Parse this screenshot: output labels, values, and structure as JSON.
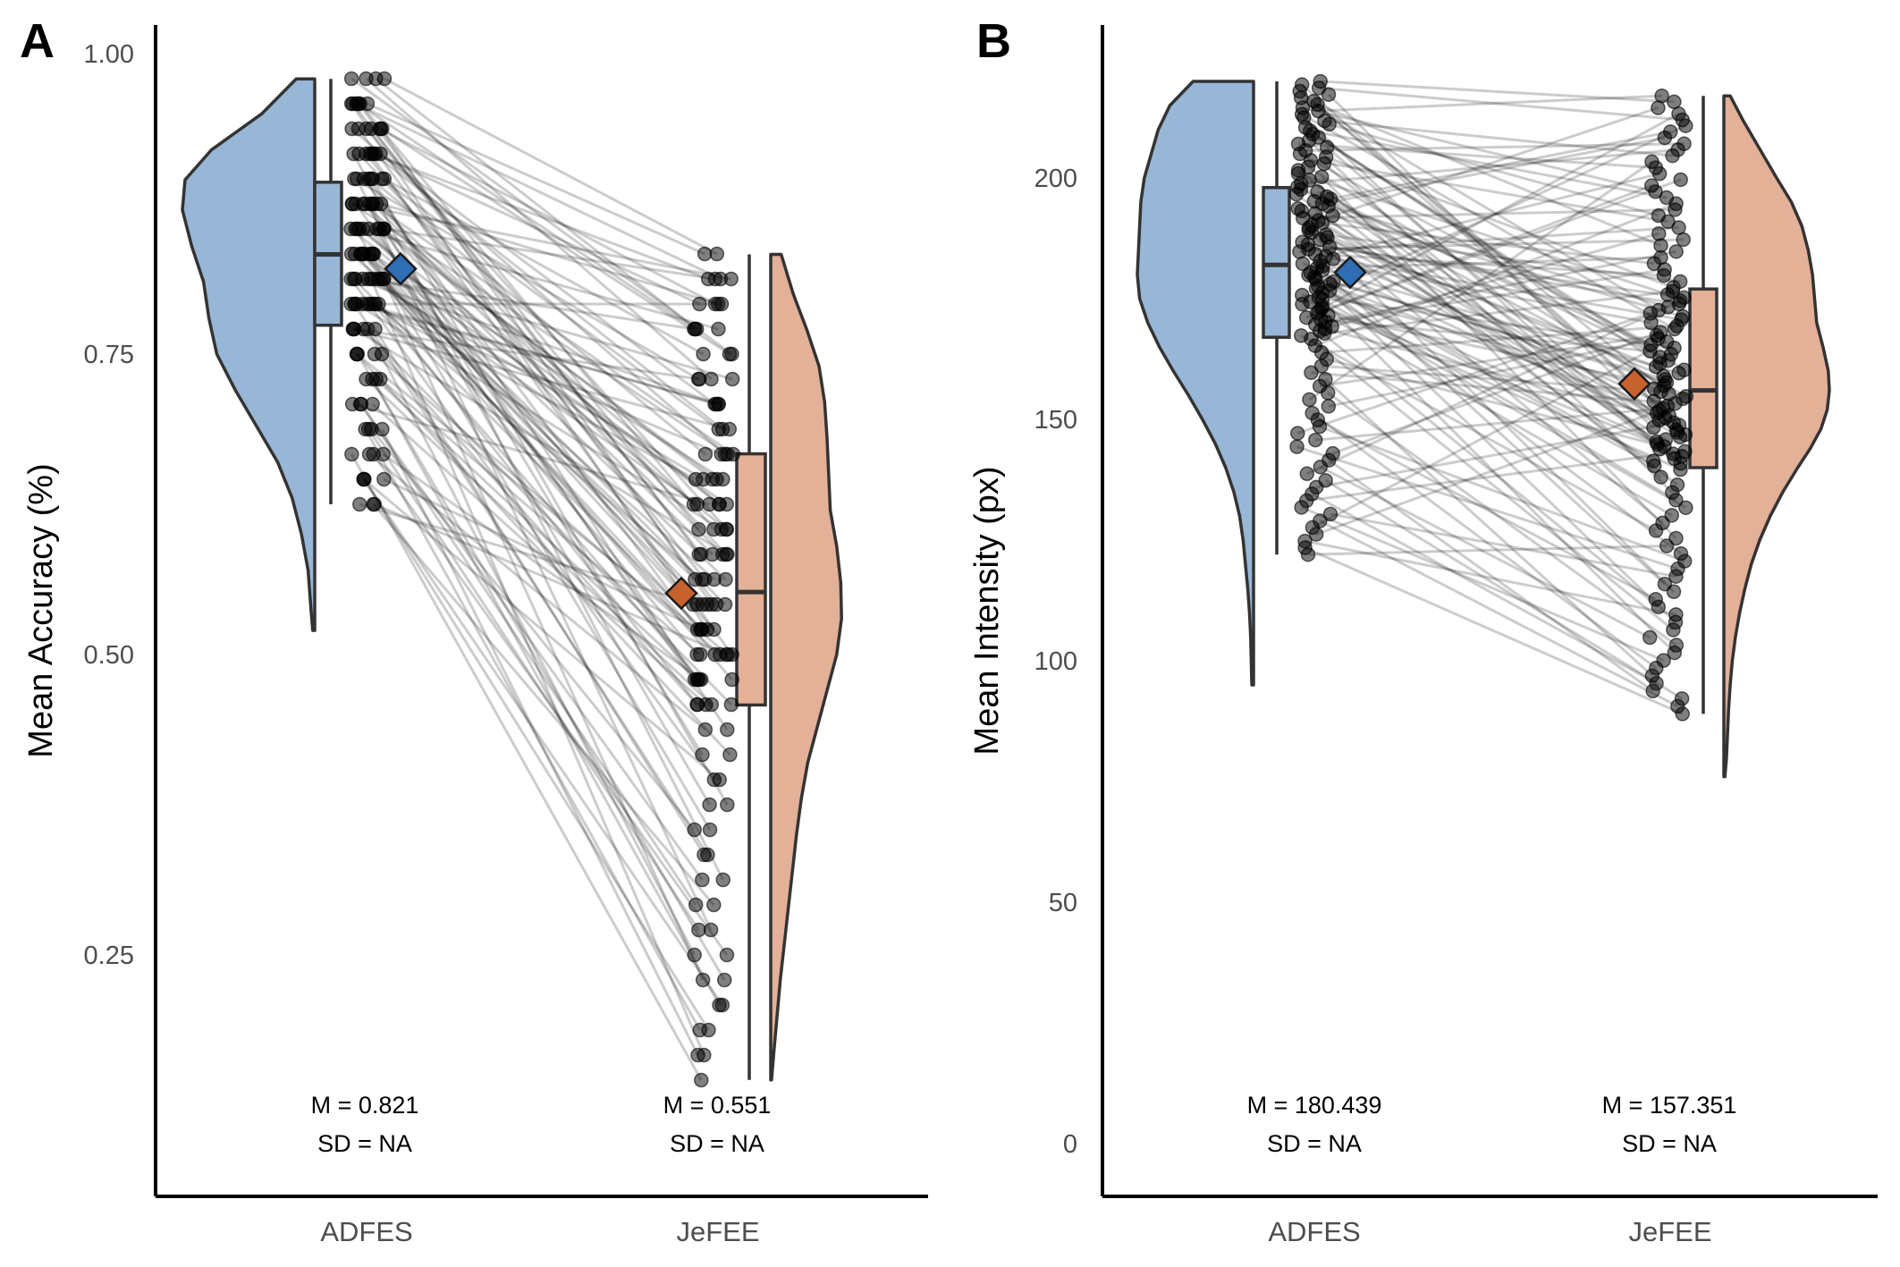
{
  "colors": {
    "group1_fill": "#98b6d6",
    "group2_fill": "#e3b098",
    "group1_mean": "#2f6db5",
    "group2_mean": "#c7622e",
    "outline": "#333333",
    "point": "#000000",
    "line": "#000000"
  },
  "chart_data": [
    {
      "panel": "A",
      "type": "raincloud",
      "ylabel": "Mean Accuracy (%)",
      "xlabel": "",
      "categories": [
        "ADFES",
        "JeFEE"
      ],
      "yticks": [
        0.25,
        0.5,
        0.75,
        1.0
      ],
      "ytick_labels": [
        "0.25",
        "0.50",
        "0.75",
        "1.00"
      ],
      "ylim": [
        0.075,
        1.02
      ],
      "grid": false,
      "groups": [
        {
          "name": "ADFES",
          "mean": 0.821,
          "box": {
            "q1": 0.774,
            "median": 0.833,
            "q3": 0.893,
            "whisker_low": 0.625,
            "whisker_high": 0.979
          },
          "annotation": [
            "M = 0.821",
            "SD = NA"
          ]
        },
        {
          "name": "JeFEE",
          "mean": 0.551,
          "box": {
            "q1": 0.458,
            "median": 0.552,
            "q3": 0.667,
            "whisker_low": 0.146,
            "whisker_high": 0.833
          },
          "annotation": [
            "M = 0.551",
            "SD = NA"
          ]
        }
      ],
      "density": {
        "ADFES": [
          [
            0.979,
            0.14
          ],
          [
            0.95,
            0.4
          ],
          [
            0.92,
            0.78
          ],
          [
            0.895,
            0.98
          ],
          [
            0.87,
            1.0
          ],
          [
            0.84,
            0.93
          ],
          [
            0.81,
            0.84
          ],
          [
            0.78,
            0.8
          ],
          [
            0.75,
            0.74
          ],
          [
            0.72,
            0.6
          ],
          [
            0.69,
            0.44
          ],
          [
            0.66,
            0.28
          ],
          [
            0.63,
            0.17
          ],
          [
            0.6,
            0.1
          ],
          [
            0.57,
            0.05
          ],
          [
            0.54,
            0.03
          ],
          [
            0.52,
            0.015
          ]
        ],
        "JeFEE": [
          [
            0.833,
            0.13
          ],
          [
            0.8,
            0.28
          ],
          [
            0.77,
            0.45
          ],
          [
            0.74,
            0.6
          ],
          [
            0.71,
            0.67
          ],
          [
            0.68,
            0.7
          ],
          [
            0.65,
            0.72
          ],
          [
            0.62,
            0.74
          ],
          [
            0.59,
            0.82
          ],
          [
            0.56,
            0.87
          ],
          [
            0.53,
            0.88
          ],
          [
            0.5,
            0.82
          ],
          [
            0.47,
            0.7
          ],
          [
            0.44,
            0.58
          ],
          [
            0.41,
            0.46
          ],
          [
            0.38,
            0.38
          ],
          [
            0.35,
            0.32
          ],
          [
            0.32,
            0.27
          ],
          [
            0.29,
            0.22
          ],
          [
            0.26,
            0.17
          ],
          [
            0.23,
            0.12
          ],
          [
            0.2,
            0.08
          ],
          [
            0.17,
            0.04
          ],
          [
            0.146,
            0.01
          ]
        ]
      }
    },
    {
      "panel": "B",
      "type": "raincloud",
      "ylabel": "Mean Intensity (px)",
      "xlabel": "",
      "categories": [
        "ADFES",
        "JeFEE"
      ],
      "yticks": [
        0,
        50,
        100,
        150,
        200
      ],
      "ytick_labels": [
        "0",
        "50",
        "100",
        "150",
        "200"
      ],
      "ylim": [
        -10,
        232
      ],
      "grid": false,
      "groups": [
        {
          "name": "ADFES",
          "mean": 180.439,
          "box": {
            "q1": 167,
            "median": 182,
            "q3": 198,
            "whisker_low": 122,
            "whisker_high": 220
          },
          "annotation": [
            "M = 180.439",
            "SD = NA"
          ]
        },
        {
          "name": "JeFEE",
          "mean": 157.351,
          "box": {
            "q1": 140,
            "median": 156,
            "q3": 177,
            "whisker_low": 89,
            "whisker_high": 217
          },
          "annotation": [
            "M = 157.351",
            "SD = NA"
          ]
        }
      ],
      "density": {
        "ADFES": [
          [
            220,
            0.52
          ],
          [
            215,
            0.72
          ],
          [
            210,
            0.82
          ],
          [
            205,
            0.88
          ],
          [
            200,
            0.94
          ],
          [
            195,
            0.97
          ],
          [
            190,
            0.98
          ],
          [
            185,
            0.99
          ],
          [
            180,
            1.0
          ],
          [
            175,
            0.98
          ],
          [
            170,
            0.91
          ],
          [
            165,
            0.81
          ],
          [
            160,
            0.69
          ],
          [
            155,
            0.56
          ],
          [
            150,
            0.44
          ],
          [
            145,
            0.33
          ],
          [
            140,
            0.24
          ],
          [
            135,
            0.17
          ],
          [
            130,
            0.12
          ],
          [
            125,
            0.09
          ],
          [
            120,
            0.07
          ],
          [
            115,
            0.05
          ],
          [
            110,
            0.035
          ],
          [
            105,
            0.025
          ],
          [
            100,
            0.02
          ],
          [
            95,
            0.015
          ]
        ],
        "JeFEE": [
          [
            217,
            0.06
          ],
          [
            212,
            0.18
          ],
          [
            206,
            0.34
          ],
          [
            200,
            0.5
          ],
          [
            195,
            0.64
          ],
          [
            190,
            0.74
          ],
          [
            185,
            0.8
          ],
          [
            180,
            0.84
          ],
          [
            175,
            0.86
          ],
          [
            170,
            0.88
          ],
          [
            165,
            0.94
          ],
          [
            160,
            0.99
          ],
          [
            156,
            1.0
          ],
          [
            152,
            0.98
          ],
          [
            148,
            0.92
          ],
          [
            144,
            0.82
          ],
          [
            140,
            0.7
          ],
          [
            135,
            0.56
          ],
          [
            130,
            0.44
          ],
          [
            125,
            0.34
          ],
          [
            120,
            0.26
          ],
          [
            115,
            0.2
          ],
          [
            110,
            0.15
          ],
          [
            105,
            0.11
          ],
          [
            100,
            0.08
          ],
          [
            95,
            0.06
          ],
          [
            90,
            0.045
          ],
          [
            85,
            0.035
          ],
          [
            80,
            0.025
          ],
          [
            76,
            0.01
          ]
        ]
      }
    }
  ]
}
